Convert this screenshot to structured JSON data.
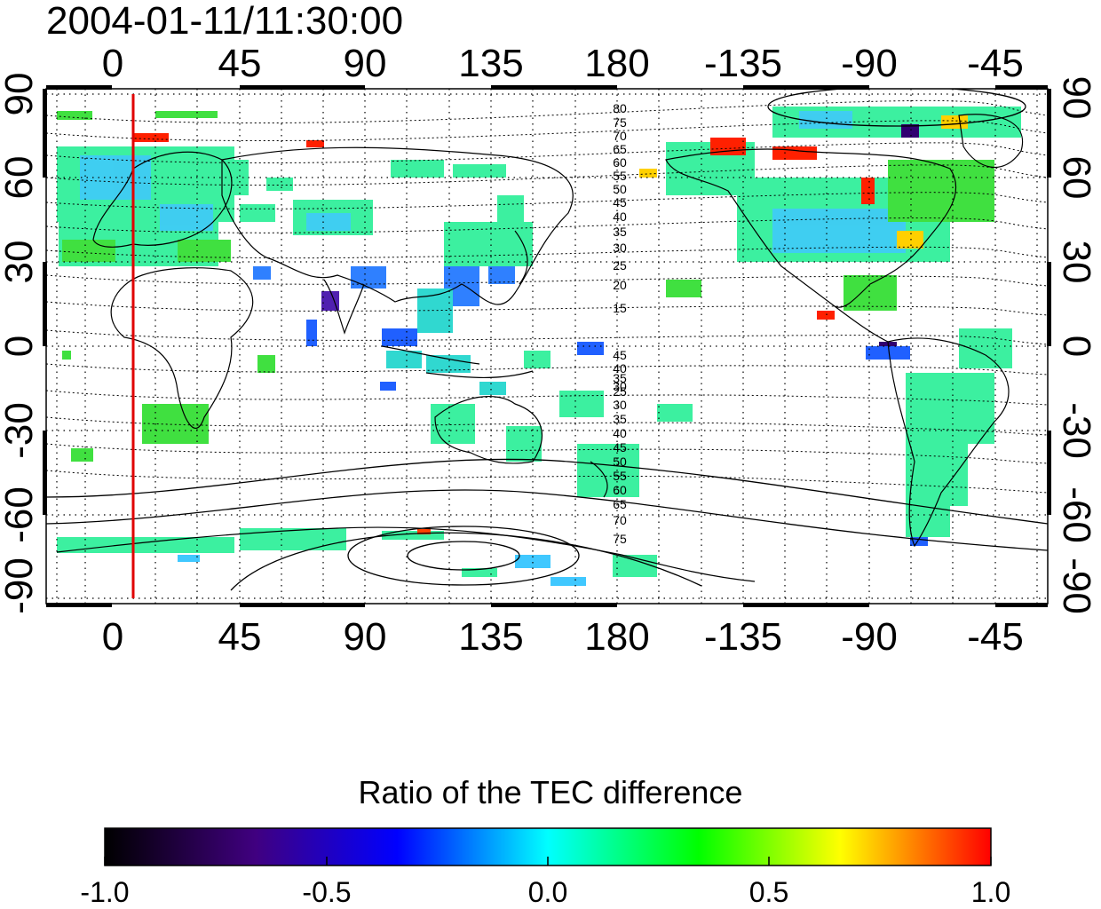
{
  "map": {
    "timestamp": "2004-01-11/11:30:00",
    "top_lon_ticks": [
      "0",
      "45",
      "90",
      "135",
      "180",
      "-135",
      "-90",
      "-45"
    ],
    "bottom_lon_ticks": [
      "0",
      "45",
      "90",
      "135",
      "180",
      "-135",
      "-90",
      "-45"
    ],
    "left_lat_ticks": [
      "90",
      "60",
      "30",
      "0",
      "-30",
      "-60",
      "-90"
    ],
    "right_lat_ticks": [
      "90",
      "60",
      "30",
      "0",
      "-30",
      "-60",
      "-90"
    ],
    "north_contour_labels": [
      "80",
      "75",
      "70",
      "65",
      "60",
      "55",
      "50",
      "45",
      "40",
      "35",
      "30",
      "25",
      "20",
      "15"
    ],
    "south_contour_labels": [
      "45",
      "40",
      "35",
      "30",
      "25",
      "30",
      "35",
      "40",
      "45",
      "50",
      "55",
      "60",
      "65",
      "70",
      "75"
    ],
    "marker_longitude": 7.5,
    "colors": {
      "marker": "#e00000",
      "grid": "#000000"
    }
  },
  "colorbar": {
    "title": "Ratio of the TEC difference",
    "tick_labels": [
      "-1.0",
      "-0.5",
      "0.0",
      "0.5",
      "1.0"
    ],
    "range": [
      -1.0,
      1.0
    ],
    "stops": [
      "#000000",
      "#400080",
      "#0000ff",
      "#00ffff",
      "#00ff00",
      "#ffff00",
      "#ff0000"
    ]
  }
}
